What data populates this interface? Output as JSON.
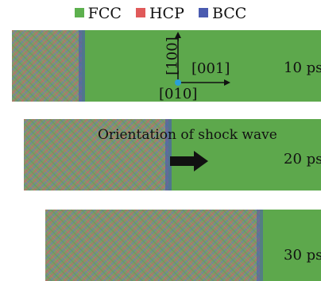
{
  "legend": [
    {
      "label": "FCC",
      "color": "#5db04e"
    },
    {
      "label": "HCP",
      "color": "#e05a5a"
    },
    {
      "label": "BCC",
      "color": "#4a5bb0"
    }
  ],
  "axes": {
    "vertical": "[100]",
    "horizontal": "[001]",
    "out_of_plane": "[010]"
  },
  "annotation": "Orientation of shock wave",
  "panels": [
    {
      "time": "10 ps"
    },
    {
      "time": "20 ps"
    },
    {
      "time": "30 ps"
    }
  ],
  "colors": {
    "background_green": "#5da84c",
    "disordered_mix": "#8a8a6a",
    "origin_dot": "#2aa0d8",
    "arrow": "#111111"
  }
}
